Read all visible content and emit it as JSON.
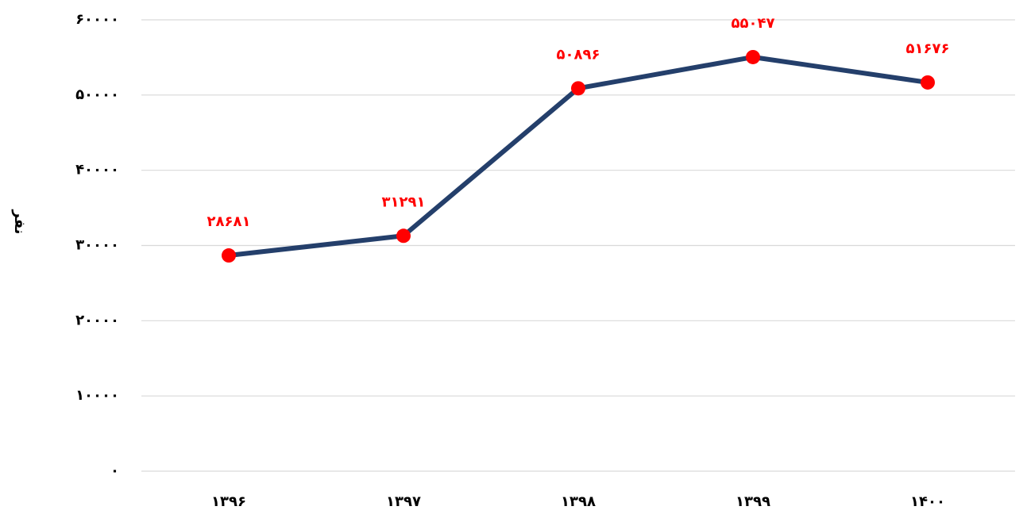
{
  "chart_data": {
    "type": "line",
    "y_label": "نفر",
    "categories": [
      "۱۳۹۶",
      "۱۳۹۷",
      "۱۳۹۸",
      "۱۳۹۹",
      "۱۴۰۰"
    ],
    "series": [
      {
        "color": "#243f6b",
        "marker_color": "#ff0000",
        "values": [
          28681,
          31291,
          50896,
          55047,
          51676
        ],
        "value_labels": [
          "۲۸۶۸۱",
          "۳۱۲۹۱",
          "۵۰۸۹۶",
          "۵۵۰۴۷",
          "۵۱۶۷۶"
        ]
      }
    ],
    "ylim": [
      0,
      60000
    ],
    "yticks": [
      {
        "value": 0,
        "label": "۰"
      },
      {
        "value": 10000,
        "label": "۱۰۰۰۰"
      },
      {
        "value": 20000,
        "label": "۲۰۰۰۰"
      },
      {
        "value": 30000,
        "label": "۳۰۰۰۰"
      },
      {
        "value": 40000,
        "label": "۴۰۰۰۰"
      },
      {
        "value": 50000,
        "label": "۵۰۰۰۰"
      },
      {
        "value": 60000,
        "label": "۶۰۰۰۰"
      }
    ],
    "grid": true
  }
}
